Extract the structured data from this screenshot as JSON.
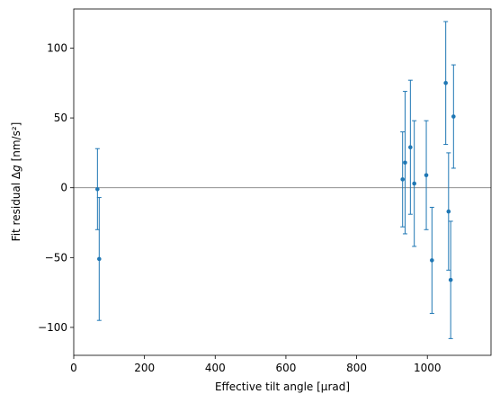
{
  "chart_data": {
    "type": "scatter",
    "title": "",
    "xlabel": "Effective tilt angle [μrad]",
    "ylabel_prefix": "Fit residual Δ",
    "ylabel_var": "g",
    "ylabel_suffix": " [nm/s²]",
    "xlim": [
      0,
      1180
    ],
    "ylim": [
      -120,
      128
    ],
    "xticks": [
      0,
      200,
      400,
      600,
      800,
      1000
    ],
    "yticks": [
      -100,
      -50,
      0,
      50,
      100
    ],
    "xtick_labels": [
      "0",
      "200",
      "400",
      "600",
      "800",
      "1000"
    ],
    "ytick_labels": [
      "−100",
      "−50",
      "0",
      "50",
      "100"
    ],
    "reference_line_y": 0,
    "grid": false,
    "legend": "none",
    "colors": {
      "series": "#1f77b4",
      "reference_line": "#808080",
      "axes": "#000000"
    },
    "series": [
      {
        "points": [
          {
            "x": 67,
            "y": -1,
            "err": 29
          },
          {
            "x": 72,
            "y": -51,
            "err": 44
          },
          {
            "x": 930,
            "y": 6,
            "err": 34
          },
          {
            "x": 937,
            "y": 18,
            "err": 51
          },
          {
            "x": 952,
            "y": 29,
            "err": 48
          },
          {
            "x": 963,
            "y": 3,
            "err": 45
          },
          {
            "x": 997,
            "y": 9,
            "err": 39
          },
          {
            "x": 1013,
            "y": -52,
            "err": 38
          },
          {
            "x": 1052,
            "y": 75,
            "err": 44
          },
          {
            "x": 1060,
            "y": -17,
            "err": 42
          },
          {
            "x": 1066,
            "y": -66,
            "err": 42
          },
          {
            "x": 1074,
            "y": 51,
            "err": 37
          }
        ]
      }
    ]
  }
}
